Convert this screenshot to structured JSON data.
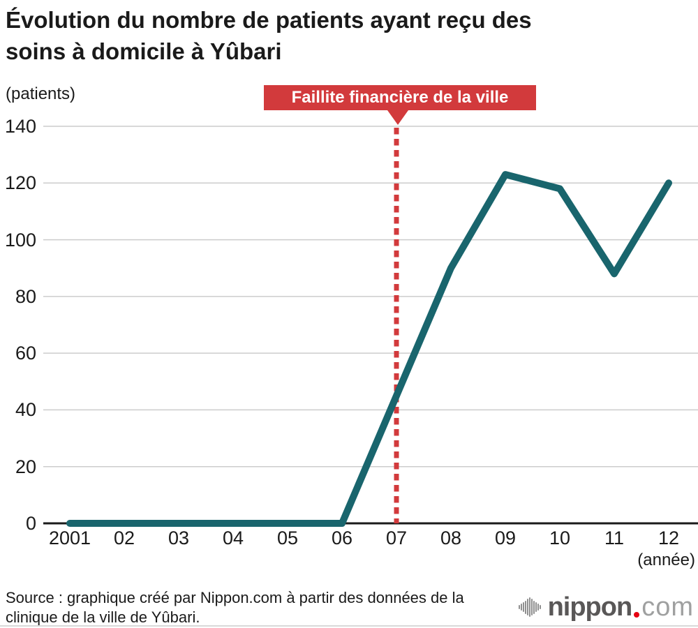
{
  "title": "Évolution du nombre de patients ayant reçu des\nsoins à domicile à Yûbari",
  "y_unit_label": "(patients)",
  "x_unit_label": "(année)",
  "annotation": {
    "label": "Faillite financière de la ville"
  },
  "source": "Source : graphique créé par Nippon.com à partir des données de la\nclinique de la ville de Yûbari.",
  "logo": {
    "name": "nippon",
    "tld": "com"
  },
  "colors": {
    "line": "#19656d",
    "annotation_red": "#d23a3c",
    "grid": "#cccccc",
    "axis": "#1a1a1a",
    "text": "#1a1a1a",
    "logo_dark": "#595757",
    "logo_light": "#9fa0a0",
    "logo_dot": "#e60012",
    "logo_icon": "#8f8f8f",
    "bottom_rule": "#d9d9d9"
  },
  "chart_data": {
    "type": "line",
    "title": "Évolution du nombre de patients ayant reçu des soins à domicile à Yûbari",
    "x": [
      "2001",
      "02",
      "03",
      "04",
      "05",
      "06",
      "07",
      "08",
      "09",
      "10",
      "11",
      "12"
    ],
    "values": [
      0,
      0,
      0,
      0,
      0,
      0,
      45,
      90,
      123,
      118,
      88,
      120
    ],
    "xlabel": "(année)",
    "ylabel": "(patients)",
    "ylim": [
      0,
      140
    ],
    "yticks": [
      0,
      20,
      40,
      60,
      80,
      100,
      120,
      140
    ],
    "grid": true,
    "legend": false,
    "annotation_x": "07",
    "annotation_label": "Faillite financière de la ville"
  }
}
